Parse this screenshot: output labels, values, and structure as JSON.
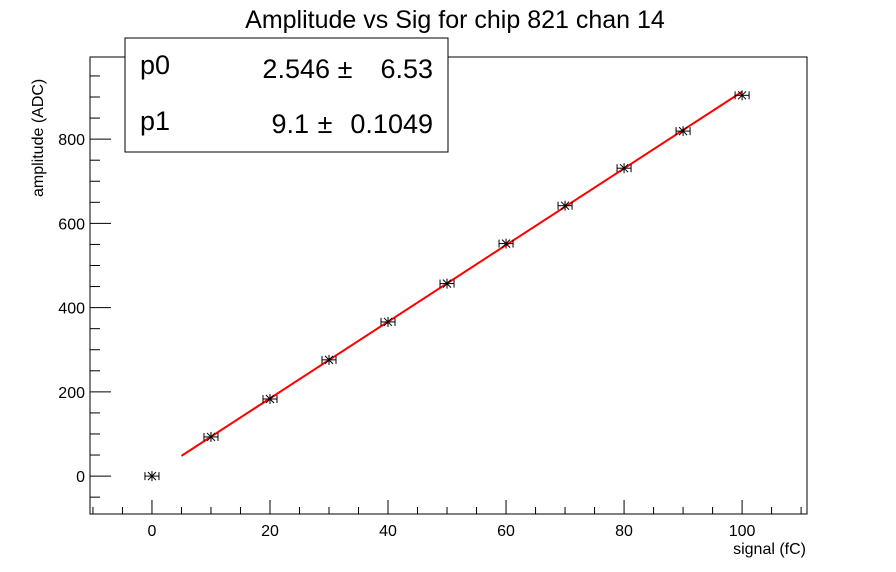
{
  "chart_data": {
    "type": "scatter",
    "title": "Amplitude vs Sig for chip 821 chan 14",
    "xlabel": "signal (fC)",
    "ylabel": "amplitude (ADC)",
    "xlim": [
      -10.5,
      111
    ],
    "ylim": [
      -90,
      995
    ],
    "xticks": [
      0,
      20,
      40,
      60,
      80,
      100
    ],
    "yticks": [
      0,
      200,
      400,
      600,
      800
    ],
    "grid": false,
    "points": [
      {
        "x": 0,
        "y": 0
      },
      {
        "x": 10,
        "y": 93
      },
      {
        "x": 20,
        "y": 183
      },
      {
        "x": 30,
        "y": 276
      },
      {
        "x": 40,
        "y": 366
      },
      {
        "x": 50,
        "y": 457
      },
      {
        "x": 60,
        "y": 552
      },
      {
        "x": 70,
        "y": 642
      },
      {
        "x": 80,
        "y": 731
      },
      {
        "x": 90,
        "y": 819
      },
      {
        "x": 100,
        "y": 904
      }
    ],
    "fit": {
      "function": "linear",
      "x_range": [
        5,
        100
      ],
      "color": "#ff0000",
      "p0": 2.546,
      "p1": 9.1
    },
    "stats_box": {
      "position": "top-left",
      "rows": [
        {
          "name": "p0",
          "value": "2.546",
          "pm": "±",
          "error": "6.53"
        },
        {
          "name": "p1",
          "value": "9.1",
          "pm": "±",
          "error": "0.1049"
        }
      ]
    }
  }
}
